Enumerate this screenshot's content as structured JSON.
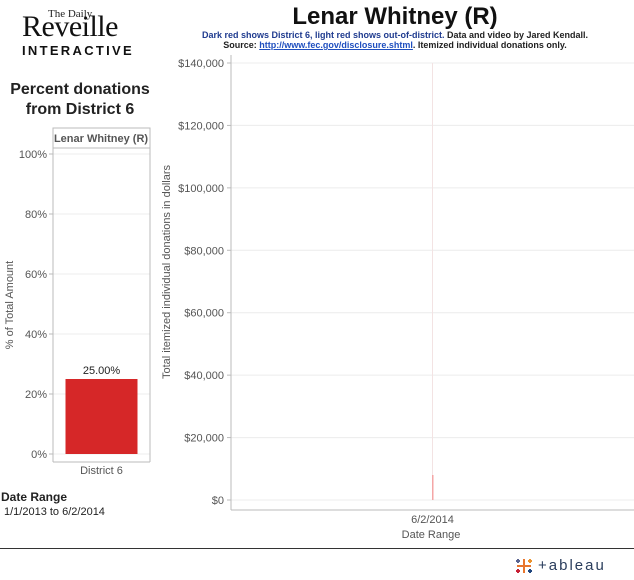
{
  "logo": {
    "small": "The Daily",
    "big": "Reveille",
    "sub": "INTERACTIVE"
  },
  "title": "Lenar Whitney (R)",
  "subtitle": {
    "part1": "Dark red shows District 6, light red shows out-of-district.",
    "part2": " Data and video by Jared Kendall.",
    "source_label": "Source: ",
    "source_url": "http://www.fec.gov/disclosure.shtml",
    "source_tail": ". Itemized individual donations only."
  },
  "left_title": "Percent donations from District 6",
  "date_range": {
    "label": "Date Range",
    "value": "1/1/2013 to 6/2/2014"
  },
  "brand": "+ableau",
  "colors": {
    "dark_red": "#d62728",
    "light_red": "#f4a6a6",
    "grid": "#ececec",
    "axis_text": "#555555"
  },
  "chart_data": [
    {
      "type": "bar",
      "header": "Lenar Whitney (R)",
      "categories": [
        "District 6"
      ],
      "values": [
        25.0
      ],
      "data_labels": [
        "25.00%"
      ],
      "ylabel": "% of Total Amount",
      "ylim": [
        0,
        100
      ],
      "yticks": [
        0,
        20,
        40,
        60,
        80,
        100
      ],
      "ytick_labels": [
        "0%",
        "20%",
        "40%",
        "60%",
        "80%",
        "100%"
      ]
    },
    {
      "type": "bar",
      "categories": [
        "6/2/2014"
      ],
      "values": [
        10
      ],
      "xlabel": "Date Range",
      "ylabel": "Total itemized individual donations in dollars",
      "ylim": [
        0,
        140000
      ],
      "yticks": [
        0,
        20000,
        40000,
        60000,
        80000,
        100000,
        120000,
        140000
      ],
      "ytick_labels": [
        "$0",
        "$20,000",
        "$40,000",
        "$60,000",
        "$80,000",
        "$100,000",
        "$120,000",
        "$140,000"
      ]
    }
  ]
}
